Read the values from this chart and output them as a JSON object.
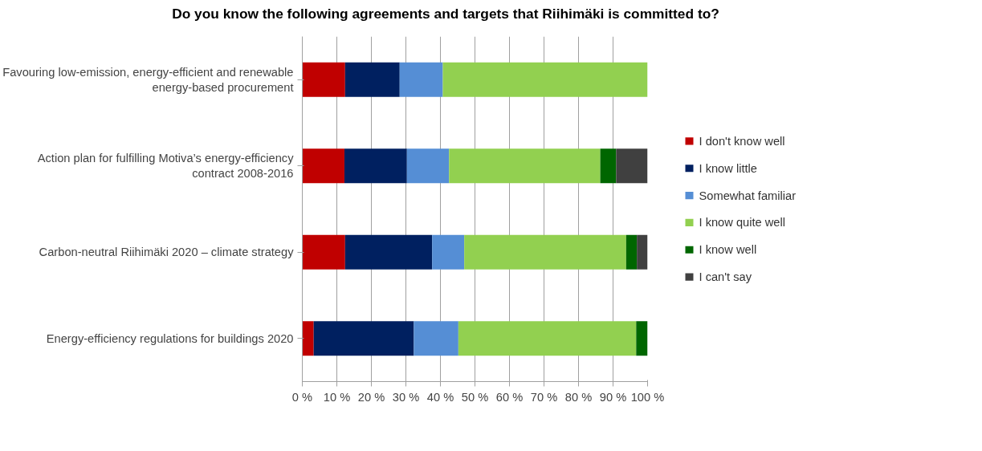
{
  "chart_data": {
    "type": "bar",
    "orientation": "horizontal",
    "stacked": true,
    "title": "Do you know the following agreements and targets that Riihimäki is committed to?",
    "categories": [
      "Favouring low-emission, energy-efficient and renewable energy-based procurement",
      "Action plan for fulfilling Motiva’s energy-efficiency contract 2008-2016",
      "Carbon-neutral Riihimäki 2020 – climate strategy",
      "Energy-efficiency regulations for buildings 2020"
    ],
    "series": [
      {
        "name": "I don't know well",
        "color": "#c00000",
        "values": [
          12.4,
          12.2,
          12.4,
          3.3
        ]
      },
      {
        "name": "I know little",
        "color": "#002060",
        "values": [
          15.8,
          18.1,
          25.2,
          29.0
        ]
      },
      {
        "name": "Somewhat familiar",
        "color": "#558ed5",
        "values": [
          12.5,
          12.2,
          9.3,
          12.9
        ]
      },
      {
        "name": "I know quite well",
        "color": "#92d050",
        "values": [
          59.3,
          43.8,
          46.9,
          51.5
        ]
      },
      {
        "name": "I know well",
        "color": "#006600",
        "values": [
          0,
          4.6,
          3.1,
          3.3
        ]
      },
      {
        "name": "I can't say",
        "color": "#404040",
        "values": [
          0,
          9.1,
          3.1,
          0
        ]
      }
    ],
    "xlim": [
      0,
      100
    ],
    "xticks": [
      {
        "value": 0,
        "label": "0 %"
      },
      {
        "value": 10,
        "label": "10 %"
      },
      {
        "value": 20,
        "label": "20 %"
      },
      {
        "value": 30,
        "label": "30 %"
      },
      {
        "value": 40,
        "label": "40 %"
      },
      {
        "value": 50,
        "label": "50 %"
      },
      {
        "value": 60,
        "label": "60 %"
      },
      {
        "value": 70,
        "label": "70 %"
      },
      {
        "value": 80,
        "label": "80 %"
      },
      {
        "value": 90,
        "label": "90 %"
      },
      {
        "value": 100,
        "label": "100 %"
      }
    ],
    "grid": "x",
    "legend": "right"
  }
}
